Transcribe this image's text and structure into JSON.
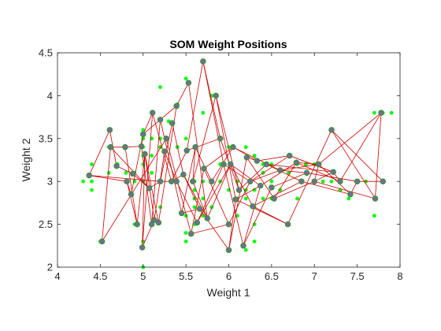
{
  "chart_data": {
    "type": "scatter",
    "title": "SOM Weight Positions",
    "xlabel": "Weight 1",
    "ylabel": "Weight 2",
    "xlim": [
      4,
      8
    ],
    "ylim": [
      2,
      4.5
    ],
    "xticks": [
      "4",
      "4.5",
      "5",
      "5.5",
      "6",
      "6.5",
      "7",
      "7.5",
      "8"
    ],
    "yticks": [
      "2",
      "2.5",
      "3",
      "3.5",
      "4",
      "4.5"
    ],
    "grid": false,
    "colors": {
      "inputs": "#00ff00",
      "neuron_fill": "#8064a2",
      "neuron_edge": "#20a020",
      "links": "#cc0000",
      "axes": "#262626"
    },
    "series": [
      {
        "role": "input-data",
        "x": [
          4.3,
          4.4,
          4.4,
          4.4,
          4.5,
          4.6,
          4.6,
          4.6,
          4.7,
          4.7,
          4.8,
          4.8,
          4.8,
          4.9,
          4.9,
          4.9,
          5.0,
          5.0,
          5.0,
          5.0,
          5.0,
          5.0,
          5.0,
          5.1,
          5.1,
          5.1,
          5.1,
          5.2,
          5.2,
          5.2,
          5.2,
          5.3,
          5.3,
          5.4,
          5.4,
          5.4,
          5.4,
          5.5,
          5.5,
          5.5,
          5.5,
          5.5,
          5.6,
          5.6,
          5.6,
          5.6,
          5.7,
          5.7,
          5.7,
          5.7,
          5.8,
          5.8,
          5.8,
          5.9,
          5.9,
          6.0,
          6.0,
          6.0,
          6.1,
          6.1,
          6.1,
          6.2,
          6.2,
          6.2,
          6.2,
          6.3,
          6.3,
          6.3,
          6.3,
          6.4,
          6.4,
          6.4,
          6.5,
          6.5,
          6.5,
          6.6,
          6.7,
          6.7,
          6.7,
          6.8,
          6.8,
          6.9,
          6.9,
          7.0,
          7.1,
          7.2,
          7.2,
          7.3,
          7.4,
          7.6,
          7.7,
          7.7,
          7.8,
          7.9,
          5.0,
          5.7,
          5.1,
          5.4,
          5.6,
          6.3
        ],
        "y": [
          3.0,
          2.9,
          3.2,
          3.0,
          2.3,
          3.1,
          3.4,
          3.6,
          3.2,
          3.2,
          3.0,
          3.4,
          3.1,
          3.0,
          3.1,
          2.5,
          3.3,
          3.4,
          3.6,
          3.5,
          2.0,
          2.3,
          3.2,
          3.8,
          3.5,
          3.3,
          2.5,
          3.5,
          4.1,
          2.7,
          3.4,
          3.7,
          3.7,
          3.9,
          3.4,
          3.0,
          3.9,
          4.2,
          2.4,
          3.5,
          2.6,
          2.3,
          2.9,
          3.0,
          2.5,
          2.8,
          4.4,
          2.6,
          3.8,
          2.8,
          4.0,
          2.7,
          2.7,
          3.0,
          3.2,
          2.2,
          2.9,
          3.4,
          2.8,
          2.6,
          3.0,
          2.2,
          3.4,
          2.8,
          2.9,
          2.3,
          3.3,
          2.5,
          2.9,
          3.2,
          2.8,
          3.1,
          3.0,
          2.8,
          3.2,
          2.9,
          3.1,
          3.3,
          2.5,
          3.2,
          2.8,
          3.1,
          3.2,
          3.2,
          3.0,
          3.6,
          3.0,
          2.9,
          2.8,
          3.0,
          2.6,
          3.8,
          3.8,
          3.8,
          3.0,
          3.0,
          3.1,
          3.4,
          2.7,
          2.7
        ]
      },
      {
        "role": "som-neurons",
        "x": [
          4.37,
          4.52,
          4.61,
          4.62,
          4.69,
          4.79,
          4.81,
          4.86,
          4.88,
          4.93,
          4.98,
          4.99,
          5.0,
          5.02,
          5.07,
          5.1,
          5.11,
          5.13,
          5.18,
          5.2,
          5.2,
          5.25,
          5.27,
          5.33,
          5.34,
          5.39,
          5.39,
          5.45,
          5.47,
          5.51,
          5.53,
          5.56,
          5.58,
          5.61,
          5.63,
          5.66,
          5.7,
          5.71,
          5.75,
          5.8,
          5.85,
          5.9,
          5.94,
          6.0,
          6.0,
          6.02,
          6.05,
          6.08,
          6.12,
          6.17,
          6.21,
          6.25,
          6.28,
          6.33,
          6.37,
          6.44,
          6.5,
          6.53,
          6.6,
          6.69,
          6.71,
          6.79,
          6.85,
          6.91,
          7.0,
          7.05,
          7.2,
          7.22,
          7.3,
          7.42,
          7.5,
          7.71,
          7.78,
          7.8
        ],
        "y": [
          3.07,
          2.3,
          3.6,
          3.4,
          3.18,
          3.4,
          3.0,
          2.85,
          3.09,
          2.5,
          3.41,
          2.23,
          3.55,
          3.32,
          2.92,
          2.5,
          3.8,
          2.55,
          2.52,
          3.0,
          3.72,
          3.35,
          3.5,
          3.0,
          3.68,
          3.88,
          3.0,
          2.63,
          3.08,
          3.36,
          4.15,
          2.39,
          3.0,
          3.4,
          2.52,
          2.68,
          4.4,
          3.15,
          2.57,
          3.0,
          4.0,
          3.5,
          3.2,
          2.2,
          2.5,
          3.2,
          3.4,
          2.79,
          2.9,
          2.25,
          3.28,
          3.0,
          2.71,
          3.24,
          2.95,
          3.2,
          2.93,
          2.8,
          3.13,
          2.5,
          3.3,
          3.22,
          3.0,
          3.1,
          3.0,
          3.2,
          3.6,
          3.11,
          3.0,
          2.85,
          3.0,
          2.8,
          3.8,
          3.0
        ]
      }
    ],
    "links": [
      [
        0,
        2
      ],
      [
        0,
        6
      ],
      [
        0,
        19
      ],
      [
        1,
        3
      ],
      [
        1,
        22
      ],
      [
        2,
        4
      ],
      [
        3,
        5
      ],
      [
        4,
        8
      ],
      [
        5,
        10
      ],
      [
        6,
        7
      ],
      [
        6,
        9
      ],
      [
        7,
        12
      ],
      [
        8,
        14
      ],
      [
        9,
        13
      ],
      [
        10,
        15
      ],
      [
        11,
        17
      ],
      [
        11,
        16
      ],
      [
        12,
        16
      ],
      [
        13,
        18
      ],
      [
        14,
        19
      ],
      [
        15,
        20
      ],
      [
        16,
        23
      ],
      [
        17,
        21
      ],
      [
        18,
        25
      ],
      [
        19,
        24
      ],
      [
        20,
        27
      ],
      [
        21,
        26
      ],
      [
        22,
        31
      ],
      [
        23,
        29
      ],
      [
        24,
        28
      ],
      [
        25,
        30
      ],
      [
        26,
        34
      ],
      [
        27,
        33
      ],
      [
        28,
        35
      ],
      [
        29,
        36
      ],
      [
        30,
        38
      ],
      [
        31,
        37
      ],
      [
        32,
        33
      ],
      [
        32,
        40
      ],
      [
        33,
        39
      ],
      [
        34,
        42
      ],
      [
        35,
        43
      ],
      [
        36,
        41
      ],
      [
        37,
        44
      ],
      [
        38,
        45
      ],
      [
        39,
        46
      ],
      [
        40,
        47
      ],
      [
        41,
        48
      ],
      [
        42,
        49
      ],
      [
        43,
        50
      ],
      [
        44,
        51
      ],
      [
        45,
        52
      ],
      [
        46,
        53
      ],
      [
        47,
        54
      ],
      [
        48,
        55
      ],
      [
        49,
        56
      ],
      [
        50,
        57
      ],
      [
        51,
        58
      ],
      [
        52,
        59
      ],
      [
        53,
        60
      ],
      [
        54,
        61
      ],
      [
        55,
        62
      ],
      [
        56,
        63
      ],
      [
        57,
        64
      ],
      [
        58,
        65
      ],
      [
        59,
        66
      ],
      [
        60,
        67
      ],
      [
        61,
        68
      ],
      [
        62,
        69
      ],
      [
        63,
        70
      ],
      [
        64,
        71
      ],
      [
        65,
        72
      ],
      [
        66,
        73
      ],
      [
        67,
        68
      ],
      [
        69,
        70
      ],
      [
        70,
        73
      ],
      [
        71,
        72
      ],
      [
        3,
        14
      ],
      [
        5,
        9
      ],
      [
        10,
        12
      ],
      [
        12,
        20
      ],
      [
        20,
        25
      ],
      [
        23,
        28
      ],
      [
        13,
        17
      ],
      [
        19,
        26
      ],
      [
        28,
        38
      ],
      [
        32,
        38
      ],
      [
        45,
        54
      ],
      [
        49,
        54
      ],
      [
        46,
        58
      ],
      [
        58,
        63
      ],
      [
        64,
        67
      ],
      [
        36,
        42
      ],
      [
        42,
        51
      ],
      [
        51,
        60
      ],
      [
        47,
        59
      ],
      [
        52,
        62
      ],
      [
        61,
        65
      ],
      [
        65,
        69
      ],
      [
        72,
        68
      ],
      [
        37,
        46
      ],
      [
        55,
        67
      ],
      [
        50,
        53
      ],
      [
        66,
        71
      ],
      [
        29,
        41
      ],
      [
        31,
        44
      ],
      [
        43,
        47
      ],
      [
        57,
        61
      ],
      [
        60,
        67
      ],
      [
        64,
        65
      ],
      [
        11,
        13
      ],
      [
        27,
        35
      ],
      [
        34,
        45
      ],
      [
        40,
        48
      ]
    ]
  }
}
